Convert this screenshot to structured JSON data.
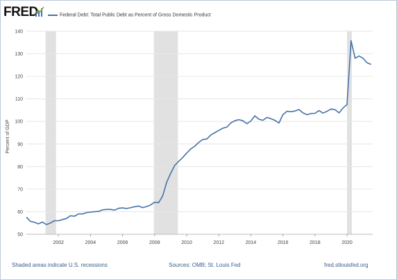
{
  "header": {
    "logo_text": "FRED",
    "logo_icon": "chart-line-icon",
    "legend_label": "Federal Debt: Total Public Debt as Percent of Gross Domestic Product"
  },
  "footer": {
    "note": "Shaded areas indicate U.S. recessions",
    "sources": "Sources: OMB; St. Louis Fed",
    "site": "fred.stlouisfed.org"
  },
  "colors": {
    "series": "#4572a7",
    "recession": "#e1e1e1",
    "grid": "#e6e6e6",
    "axis_text": "#444444"
  },
  "chart_data": {
    "type": "line",
    "title": "",
    "ylabel": "Percent of GDP",
    "xlabel": "",
    "ylim": [
      50,
      140
    ],
    "xlim": [
      2000.0,
      2021.6
    ],
    "grid": true,
    "x_ticks": [
      "2002",
      "2004",
      "2006",
      "2008",
      "2010",
      "2012",
      "2014",
      "2016",
      "2018",
      "2020"
    ],
    "y_ticks": [
      "50",
      "60",
      "70",
      "80",
      "90",
      "100",
      "110",
      "120",
      "130",
      "140"
    ],
    "recessions": [
      {
        "start": 2001.2,
        "end": 2001.85
      },
      {
        "start": 2007.95,
        "end": 2009.45
      },
      {
        "start": 2020.0,
        "end": 2020.3
      }
    ],
    "series": [
      {
        "name": "Federal Debt: Total Public Debt as Percent of Gross Domestic Product",
        "x": [
          2000.0,
          2000.25,
          2000.5,
          2000.75,
          2001.0,
          2001.25,
          2001.5,
          2001.75,
          2002.0,
          2002.25,
          2002.5,
          2002.75,
          2003.0,
          2003.25,
          2003.5,
          2003.75,
          2004.0,
          2004.25,
          2004.5,
          2004.75,
          2005.0,
          2005.25,
          2005.5,
          2005.75,
          2006.0,
          2006.25,
          2006.5,
          2006.75,
          2007.0,
          2007.25,
          2007.5,
          2007.75,
          2008.0,
          2008.25,
          2008.5,
          2008.75,
          2009.0,
          2009.25,
          2009.5,
          2009.75,
          2010.0,
          2010.25,
          2010.5,
          2010.75,
          2011.0,
          2011.25,
          2011.5,
          2011.75,
          2012.0,
          2012.25,
          2012.5,
          2012.75,
          2013.0,
          2013.25,
          2013.5,
          2013.75,
          2014.0,
          2014.25,
          2014.5,
          2014.75,
          2015.0,
          2015.25,
          2015.5,
          2015.75,
          2016.0,
          2016.25,
          2016.5,
          2016.75,
          2017.0,
          2017.25,
          2017.5,
          2017.75,
          2018.0,
          2018.25,
          2018.5,
          2018.75,
          2019.0,
          2019.25,
          2019.5,
          2019.75,
          2020.0,
          2020.25,
          2020.5,
          2020.75,
          2021.0,
          2021.25,
          2021.5
        ],
        "values": [
          57.6,
          55.7,
          55.3,
          54.6,
          55.4,
          54.3,
          55.0,
          56.0,
          56.0,
          56.5,
          57.0,
          58.2,
          58.0,
          59.0,
          59.0,
          59.6,
          59.8,
          60.0,
          60.1,
          60.8,
          61.0,
          61.0,
          60.7,
          61.5,
          61.7,
          61.4,
          61.8,
          62.2,
          62.5,
          61.8,
          62.3,
          63.0,
          64.2,
          64.0,
          67.0,
          73.0,
          77.0,
          80.5,
          82.3,
          84.0,
          86.0,
          87.8,
          89.0,
          90.7,
          92.0,
          92.2,
          94.0,
          95.0,
          96.0,
          97.0,
          97.5,
          99.3,
          100.3,
          100.8,
          100.3,
          99.0,
          100.2,
          102.5,
          101.0,
          100.5,
          101.8,
          101.2,
          100.5,
          99.3,
          103.0,
          104.5,
          104.3,
          104.6,
          105.3,
          103.8,
          103.0,
          103.5,
          103.6,
          104.8,
          103.7,
          104.5,
          105.5,
          105.2,
          103.8,
          106.0,
          107.5,
          135.8,
          128.0,
          129.0,
          128.0,
          126.0,
          125.3
        ]
      }
    ]
  }
}
